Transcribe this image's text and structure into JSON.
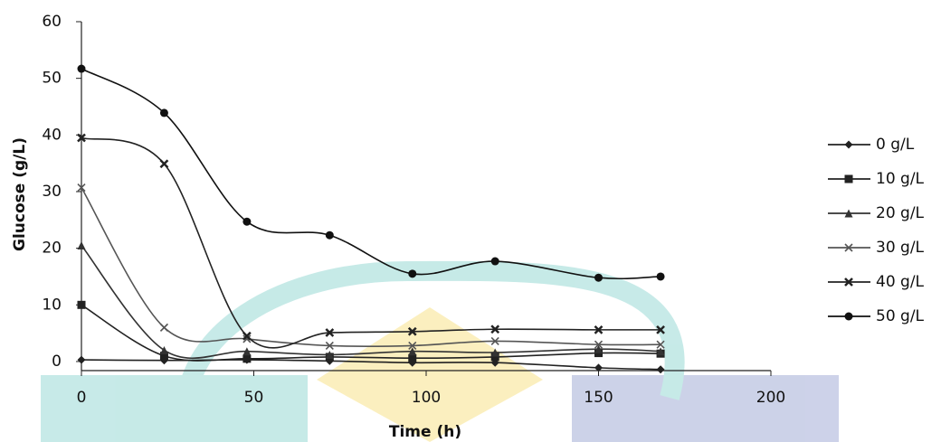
{
  "chart_data": {
    "type": "line",
    "x_label": "Time (h)",
    "y_label": "Glucose (g/L)",
    "x": [
      0,
      24,
      48,
      72,
      96,
      120,
      150,
      168
    ],
    "xlim": [
      0,
      200
    ],
    "xticks": [
      0,
      50,
      100,
      150,
      200
    ],
    "ylim": [
      -1.6,
      60
    ],
    "yticks": [
      0,
      10,
      20,
      30,
      40,
      50,
      60
    ],
    "smooth": true,
    "legend": "right",
    "series": [
      {
        "name": "0 g/L",
        "color": "#222222",
        "marker": "diamond",
        "values": [
          0.3,
          0.2,
          0.3,
          0.1,
          -0.2,
          -0.2,
          -1.1,
          -1.4
        ]
      },
      {
        "name": "10 g/L",
        "color": "#222222",
        "marker": "square",
        "values": [
          10,
          1.0,
          0.5,
          0.8,
          0.6,
          0.8,
          1.5,
          1.4
        ]
      },
      {
        "name": "20 g/L",
        "color": "#333333",
        "marker": "triangle",
        "values": [
          20.5,
          2.0,
          1.8,
          1.2,
          1.8,
          1.6,
          2.2,
          1.8
        ]
      },
      {
        "name": "30 g/L",
        "color": "#555555",
        "marker": "x",
        "values": [
          30.7,
          6.0,
          4.0,
          2.8,
          2.8,
          3.6,
          3.0,
          3.0
        ]
      },
      {
        "name": "40 g/L",
        "color": "#222222",
        "marker": "star",
        "values": [
          39.5,
          34.9,
          4.5,
          5.1,
          5.3,
          5.7,
          5.6,
          5.6
        ]
      },
      {
        "name": "50 g/L",
        "color": "#111111",
        "marker": "circle",
        "values": [
          51.7,
          43.9,
          24.7,
          22.3,
          15.5,
          17.7,
          14.8,
          15.0
        ]
      }
    ]
  }
}
